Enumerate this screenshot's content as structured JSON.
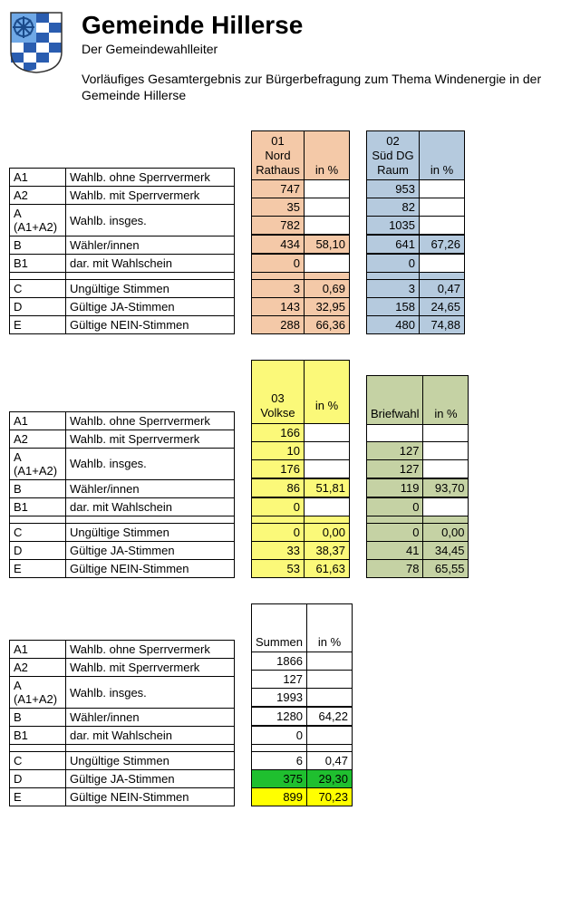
{
  "title": "Gemeinde Hillerse",
  "subtitle": "Der Gemeindewahlleiter",
  "intro": "Vorläufiges Gesamtergebnis zur Bürgerbefragung zum Thema Windenergie in der Gemeinde Hillerse",
  "row_labels": [
    {
      "code": "A1",
      "desc": "Wahlb. ohne Sperrvermerk"
    },
    {
      "code": "A2",
      "desc": "Wahlb. mit Sperrvermerk"
    },
    {
      "code": "A (A1+A2)",
      "desc": "Wahlb. insges."
    },
    {
      "code": "B",
      "desc": "Wähler/innen"
    },
    {
      "code": "B1",
      "desc": "dar. mit Wahlschein"
    },
    {
      "code": "",
      "desc": ""
    },
    {
      "code": "C",
      "desc": "Ungültige Stimmen"
    },
    {
      "code": "D",
      "desc": "Gültige JA-Stimmen"
    },
    {
      "code": "E",
      "desc": "Gültige NEIN-Stimmen"
    }
  ],
  "pct_header": "in %",
  "colors": {
    "orange": "#f4c9a8",
    "blue": "#b5cade",
    "yellow": "#fbf979",
    "yellow_bright": "#ffff00",
    "olive": "#c5d2a4",
    "green": "#1fbf2f",
    "white": "#ffffff"
  },
  "sections": [
    {
      "blocks": [
        {
          "header_lines": [
            "01",
            "Nord",
            "Rathaus"
          ],
          "bg": "#f4c9a8",
          "rows": [
            {
              "val": "747",
              "pct": ""
            },
            {
              "val": "35",
              "pct": ""
            },
            {
              "val": "782",
              "pct": ""
            },
            {
              "val": "434",
              "pct": "58,10",
              "thick": true
            },
            {
              "val": "0",
              "pct": ""
            },
            {
              "blank": true
            },
            {
              "val": "3",
              "pct": "0,69"
            },
            {
              "val": "143",
              "pct": "32,95"
            },
            {
              "val": "288",
              "pct": "66,36"
            }
          ]
        },
        {
          "header_lines": [
            "02",
            "Süd DG",
            "Raum"
          ],
          "bg": "#b5cade",
          "rows": [
            {
              "val": "953",
              "pct": ""
            },
            {
              "val": "82",
              "pct": ""
            },
            {
              "val": "1035",
              "pct": ""
            },
            {
              "val": "641",
              "pct": "67,26",
              "thick": true
            },
            {
              "val": "0",
              "pct": ""
            },
            {
              "blank": true
            },
            {
              "val": "3",
              "pct": "0,47"
            },
            {
              "val": "158",
              "pct": "24,65"
            },
            {
              "val": "480",
              "pct": "74,88"
            }
          ]
        }
      ]
    },
    {
      "blocks": [
        {
          "header_lines": [
            "",
            "",
            "03 Volkse"
          ],
          "bg": "#fbf979",
          "rows": [
            {
              "val": "166",
              "pct": ""
            },
            {
              "val": "10",
              "pct": ""
            },
            {
              "val": "176",
              "pct": ""
            },
            {
              "val": "86",
              "pct": "51,81",
              "thick": true
            },
            {
              "val": "0",
              "pct": ""
            },
            {
              "blank": true
            },
            {
              "val": "0",
              "pct": "0,00"
            },
            {
              "val": "33",
              "pct": "38,37"
            },
            {
              "val": "53",
              "pct": "61,63"
            }
          ]
        },
        {
          "header_lines": [
            "",
            "",
            "Briefwahl"
          ],
          "bg": "#c5d2a4",
          "rows": [
            {
              "val": "",
              "pct": "",
              "white": true
            },
            {
              "val": "127",
              "pct": ""
            },
            {
              "val": "127",
              "pct": ""
            },
            {
              "val": "119",
              "pct": "93,70",
              "thick": true
            },
            {
              "val": "0",
              "pct": ""
            },
            {
              "blank": true
            },
            {
              "val": "0",
              "pct": "0,00"
            },
            {
              "val": "41",
              "pct": "34,45"
            },
            {
              "val": "78",
              "pct": "65,55"
            }
          ]
        }
      ]
    },
    {
      "blocks": [
        {
          "header_lines": [
            "",
            "",
            "Summen"
          ],
          "bg": "#ffffff",
          "summary": true,
          "rows": [
            {
              "val": "1866",
              "pct": ""
            },
            {
              "val": "127",
              "pct": ""
            },
            {
              "val": "1993",
              "pct": ""
            },
            {
              "val": "1280",
              "pct": "64,22",
              "thick": true
            },
            {
              "val": "0",
              "pct": ""
            },
            {
              "blank": true
            },
            {
              "val": "6",
              "pct": "0,47"
            },
            {
              "val": "375",
              "pct": "29,30",
              "rowbg": "#1fbf2f"
            },
            {
              "val": "899",
              "pct": "70,23",
              "rowbg": "#ffff00"
            }
          ]
        }
      ]
    }
  ]
}
